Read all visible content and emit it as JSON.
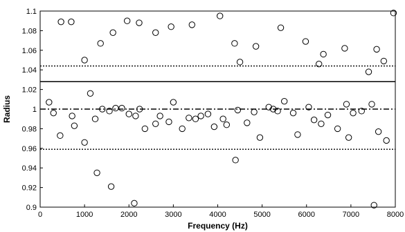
{
  "chart_data": {
    "type": "scatter",
    "xlabel": "Frequency (Hz)",
    "ylabel": "Radius",
    "xlim": [
      0,
      8000
    ],
    "ylim": [
      0.9,
      1.1
    ],
    "x_ticks": [
      0,
      1000,
      2000,
      3000,
      4000,
      5000,
      6000,
      7000,
      8000
    ],
    "y_ticks": [
      0.9,
      0.92,
      0.94,
      0.96,
      0.98,
      1,
      1.02,
      1.04,
      1.06,
      1.08,
      1.1
    ],
    "y_tick_labels": [
      "0.9",
      "0.92",
      "0.94",
      "0.96",
      "0.98",
      "1",
      "1.02",
      "1.04",
      "1.06",
      "1.08",
      "1.1"
    ],
    "grid": false,
    "marker": "open-circle",
    "reference_lines": [
      {
        "style": "dotted",
        "y": 1.044
      },
      {
        "style": "solid",
        "y": 1.028
      },
      {
        "style": "dash-dot",
        "y": 1.0
      },
      {
        "style": "dotted",
        "y": 0.959
      }
    ],
    "series": [
      {
        "points": [
          [
            200,
            1.007
          ],
          [
            300,
            0.996
          ],
          [
            450,
            0.973
          ],
          [
            470,
            1.089
          ],
          [
            700,
            1.089
          ],
          [
            720,
            0.993
          ],
          [
            770,
            0.983
          ],
          [
            1000,
            1.05
          ],
          [
            1000,
            0.966
          ],
          [
            1130,
            1.016
          ],
          [
            1240,
            0.99
          ],
          [
            1280,
            0.935
          ],
          [
            1360,
            1.067
          ],
          [
            1400,
            1.0
          ],
          [
            1560,
            0.998
          ],
          [
            1600,
            0.921
          ],
          [
            1640,
            1.078
          ],
          [
            1700,
            1.001
          ],
          [
            1840,
            1.001
          ],
          [
            1960,
            1.09
          ],
          [
            2000,
            0.995
          ],
          [
            2120,
            0.904
          ],
          [
            2150,
            0.993
          ],
          [
            2230,
            1.088
          ],
          [
            2240,
            1.0
          ],
          [
            2360,
            0.98
          ],
          [
            2600,
            1.078
          ],
          [
            2600,
            0.985
          ],
          [
            2700,
            0.993
          ],
          [
            2900,
            0.987
          ],
          [
            2950,
            1.084
          ],
          [
            3000,
            1.007
          ],
          [
            3200,
            0.98
          ],
          [
            3350,
            0.991
          ],
          [
            3420,
            1.086
          ],
          [
            3500,
            0.99
          ],
          [
            3620,
            0.993
          ],
          [
            3780,
            0.995
          ],
          [
            3920,
            0.982
          ],
          [
            4050,
            1.095
          ],
          [
            4120,
            0.99
          ],
          [
            4200,
            0.984
          ],
          [
            4380,
            1.067
          ],
          [
            4400,
            0.948
          ],
          [
            4450,
            0.999
          ],
          [
            4500,
            1.048
          ],
          [
            4660,
            0.986
          ],
          [
            4820,
            0.997
          ],
          [
            4860,
            1.064
          ],
          [
            4950,
            0.971
          ],
          [
            5150,
            1.002
          ],
          [
            5250,
            1.0
          ],
          [
            5350,
            0.998
          ],
          [
            5420,
            1.083
          ],
          [
            5500,
            1.008
          ],
          [
            5700,
            0.996
          ],
          [
            5800,
            0.974
          ],
          [
            5980,
            1.069
          ],
          [
            6050,
            1.002
          ],
          [
            6170,
            0.989
          ],
          [
            6280,
            1.046
          ],
          [
            6330,
            0.985
          ],
          [
            6380,
            1.056
          ],
          [
            6480,
            0.994
          ],
          [
            6700,
            0.98
          ],
          [
            6860,
            1.062
          ],
          [
            6900,
            1.005
          ],
          [
            6950,
            0.971
          ],
          [
            7050,
            0.996
          ],
          [
            7240,
            0.998
          ],
          [
            7400,
            1.038
          ],
          [
            7470,
            1.005
          ],
          [
            7520,
            0.902
          ],
          [
            7580,
            1.061
          ],
          [
            7620,
            0.977
          ],
          [
            7740,
            1.049
          ],
          [
            7800,
            0.968
          ],
          [
            7960,
            1.098
          ]
        ]
      }
    ]
  }
}
